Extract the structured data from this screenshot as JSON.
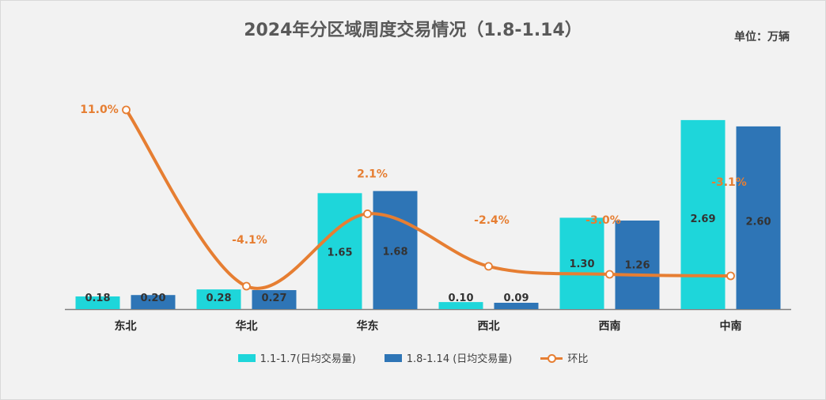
{
  "title": "2024年分区域周度交易情况（1.8-1.14）",
  "unit_label": "单位：万辆",
  "colors": {
    "series1": "#1ed6da",
    "series2": "#2e75b6",
    "line": "#e67e32"
  },
  "chart_data": {
    "type": "bar",
    "categories": [
      "东北",
      "华北",
      "华东",
      "西北",
      "西南",
      "中南"
    ],
    "series": [
      {
        "name": "1.1-1.7(日均交易量)",
        "values": [
          0.18,
          0.28,
          1.65,
          0.1,
          1.3,
          2.69
        ]
      },
      {
        "name": "1.8-1.14 (日均交易量)",
        "values": [
          0.2,
          0.27,
          1.68,
          0.09,
          1.26,
          2.6
        ]
      }
    ],
    "line_series": {
      "name": "环比",
      "values": [
        11.0,
        -4.1,
        2.1,
        -2.4,
        -3.0,
        -3.1
      ],
      "labels": [
        "11.0%",
        "-4.1%",
        "2.1%",
        "-2.4%",
        "-3.0%",
        "-3.1%"
      ],
      "ylim": [
        -5,
        12
      ]
    },
    "bar_labels": [
      [
        "0.18",
        "0.28",
        "1.65",
        "0.10",
        "1.30",
        "2.69"
      ],
      [
        "0.20",
        "0.27",
        "1.68",
        "0.09",
        "1.26",
        "2.60"
      ]
    ],
    "ylim": [
      0,
      2.7
    ],
    "legend_position": "bottom",
    "grid": false
  }
}
